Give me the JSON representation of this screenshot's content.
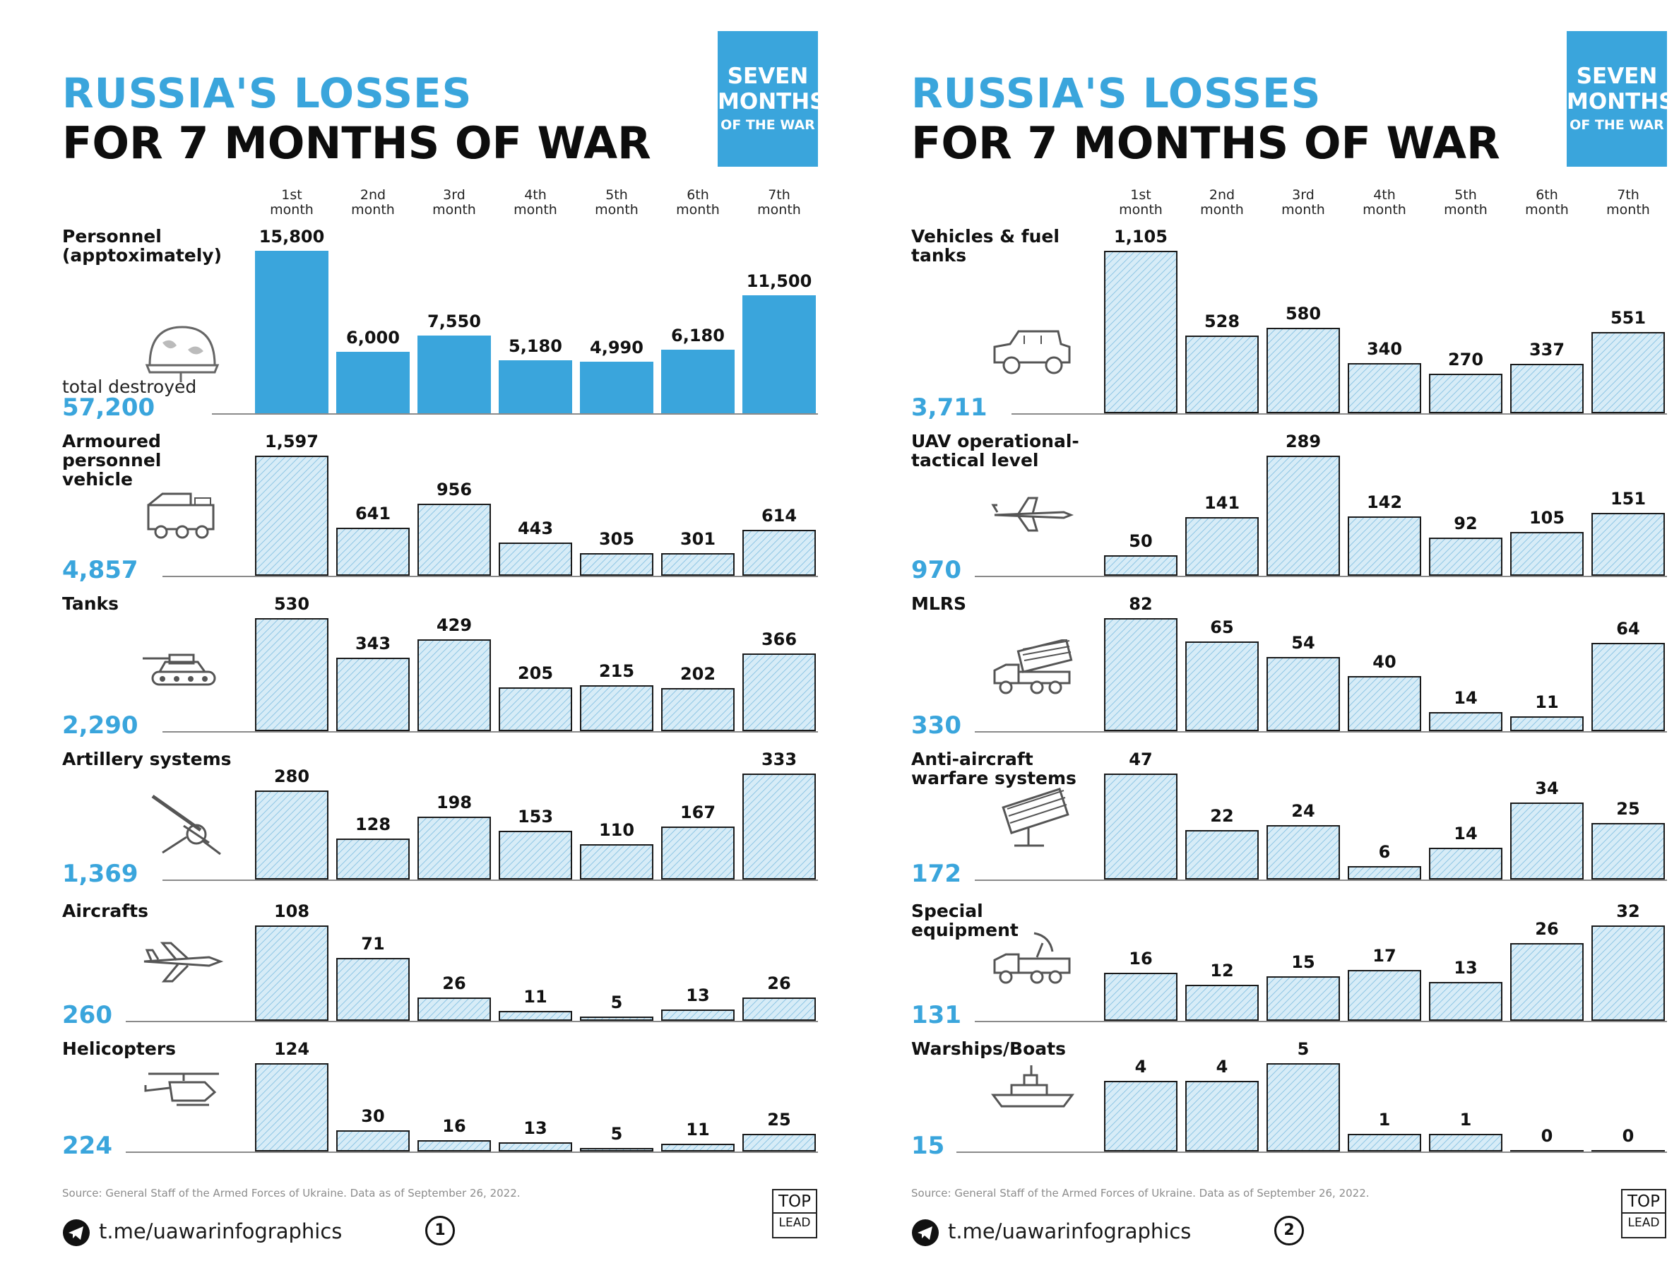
{
  "colors": {
    "accent": "#3aa5dc",
    "bar_fill": "#d7ecf7",
    "bar_border": "#1a1a1a",
    "text": "#111111"
  },
  "panels": [
    {
      "title_line1": "RUSSIA'S LOSSES",
      "title_line2": "FOR 7 MONTHS OF WAR",
      "badge": {
        "line1": "SEVEN",
        "line2": "MONTHS",
        "line3": "OF THE WAR"
      },
      "months": [
        {
          "ordinal": "1st",
          "word": "month"
        },
        {
          "ordinal": "2nd",
          "word": "month"
        },
        {
          "ordinal": "3rd",
          "word": "month"
        },
        {
          "ordinal": "4th",
          "word": "month"
        },
        {
          "ordinal": "5th",
          "word": "month"
        },
        {
          "ordinal": "6th",
          "word": "month"
        },
        {
          "ordinal": "7th",
          "word": "month"
        }
      ],
      "source": "Source: General Staff of the Armed Forces of Ukraine. Data as of September 26, 2022.",
      "link": "t.me/uawarinfographics",
      "page_number": "1",
      "toplead": {
        "line1": "TOP",
        "line2": "LEAD"
      }
    },
    {
      "title_line1": "RUSSIA'S LOSSES",
      "title_line2": "FOR 7 MONTHS OF WAR",
      "badge": {
        "line1": "SEVEN",
        "line2": "MONTHS",
        "line3": "OF THE WAR"
      },
      "months": [
        {
          "ordinal": "1st",
          "word": "month"
        },
        {
          "ordinal": "2nd",
          "word": "month"
        },
        {
          "ordinal": "3rd",
          "word": "month"
        },
        {
          "ordinal": "4th",
          "word": "month"
        },
        {
          "ordinal": "5th",
          "word": "month"
        },
        {
          "ordinal": "6th",
          "word": "month"
        },
        {
          "ordinal": "7th",
          "word": "month"
        }
      ],
      "source": "Source: General Staff of the Armed Forces of Ukraine. Data as of September 26, 2022.",
      "link": "t.me/uawarinfographics",
      "page_number": "2",
      "toplead": {
        "line1": "TOP",
        "line2": "LEAD"
      }
    }
  ],
  "chart_data": [
    {
      "type": "bar",
      "categories": [
        "1st month",
        "2nd month",
        "3rd month",
        "4th month",
        "5th month",
        "6th month",
        "7th month"
      ],
      "series": [
        {
          "name": "Personnel (apptoximately)",
          "icon": "helmet-icon",
          "total": "57,200",
          "total_caption": "total destroyed",
          "solid": true,
          "values": [
            15800,
            6000,
            7550,
            5180,
            4990,
            6180,
            11500
          ],
          "labels": [
            "15,800",
            "6,000",
            "7,550",
            "5,180",
            "4,990",
            "6,180",
            "11,500"
          ]
        },
        {
          "name": "Armoured personnel vehicle",
          "icon": "apc-icon",
          "total": "4,857",
          "values": [
            1597,
            641,
            956,
            443,
            305,
            301,
            614
          ],
          "labels": [
            "1,597",
            "641",
            "956",
            "443",
            "305",
            "301",
            "614"
          ]
        },
        {
          "name": "Tanks",
          "icon": "tank-icon",
          "total": "2,290",
          "values": [
            530,
            343,
            429,
            205,
            215,
            202,
            366
          ],
          "labels": [
            "530",
            "343",
            "429",
            "205",
            "215",
            "202",
            "366"
          ]
        },
        {
          "name": "Artillery systems",
          "icon": "artillery-icon",
          "total": "1,369",
          "values": [
            280,
            128,
            198,
            153,
            110,
            167,
            333
          ],
          "labels": [
            "280",
            "128",
            "198",
            "153",
            "110",
            "167",
            "333"
          ]
        },
        {
          "name": "Aircrafts",
          "icon": "aircraft-icon",
          "total": "260",
          "values": [
            108,
            71,
            26,
            11,
            5,
            13,
            26
          ],
          "labels": [
            "108",
            "71",
            "26",
            "11",
            "5",
            "13",
            "26"
          ]
        },
        {
          "name": "Helicopters",
          "icon": "helicopter-icon",
          "total": "224",
          "values": [
            124,
            30,
            16,
            13,
            5,
            11,
            25
          ],
          "labels": [
            "124",
            "30",
            "16",
            "13",
            "5",
            "11",
            "25"
          ]
        }
      ]
    },
    {
      "type": "bar",
      "categories": [
        "1st month",
        "2nd month",
        "3rd month",
        "4th month",
        "5th month",
        "6th month",
        "7th month"
      ],
      "series": [
        {
          "name": "Vehicles & fuel tanks",
          "icon": "jeep-icon",
          "total": "3,711",
          "values": [
            1105,
            528,
            580,
            340,
            270,
            337,
            551
          ],
          "labels": [
            "1,105",
            "528",
            "580",
            "340",
            "270",
            "337",
            "551"
          ]
        },
        {
          "name": "UAV operational-tactical level",
          "icon": "drone-icon",
          "total": "970",
          "values": [
            50,
            141,
            289,
            142,
            92,
            105,
            151
          ],
          "labels": [
            "50",
            "141",
            "289",
            "142",
            "92",
            "105",
            "151"
          ]
        },
        {
          "name": "MLRS",
          "icon": "mlrs-truck-icon",
          "total": "330",
          "values": [
            82,
            65,
            54,
            40,
            14,
            11,
            64
          ],
          "labels": [
            "82",
            "65",
            "54",
            "40",
            "14",
            "11",
            "64"
          ]
        },
        {
          "name": "Anti-aircraft warfare systems",
          "icon": "missile-launcher-icon",
          "total": "172",
          "values": [
            47,
            22,
            24,
            6,
            14,
            34,
            25
          ],
          "labels": [
            "47",
            "22",
            "24",
            "6",
            "14",
            "34",
            "25"
          ]
        },
        {
          "name": "Special equipment",
          "icon": "radar-truck-icon",
          "total": "131",
          "values": [
            16,
            12,
            15,
            17,
            13,
            26,
            32
          ],
          "labels": [
            "16",
            "12",
            "15",
            "17",
            "13",
            "26",
            "32"
          ]
        },
        {
          "name": "Warships/Boats",
          "icon": "warship-icon",
          "total": "15",
          "values": [
            4,
            4,
            5,
            1,
            1,
            0,
            0
          ],
          "labels": [
            "4",
            "4",
            "5",
            "1",
            "1",
            "0",
            "0"
          ]
        }
      ]
    }
  ]
}
